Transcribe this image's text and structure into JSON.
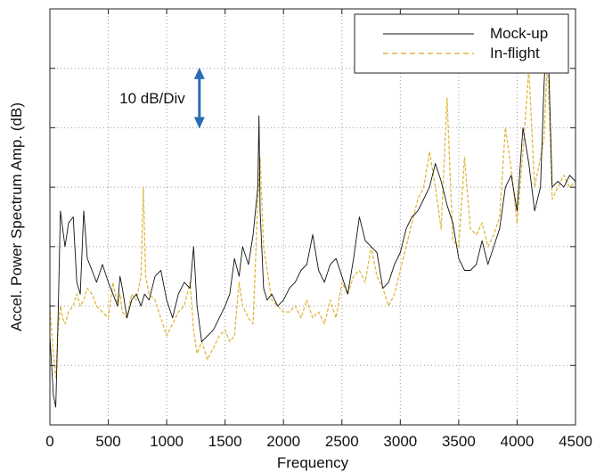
{
  "chart_data": {
    "type": "line",
    "xlabel": "Frequency",
    "ylabel": "Accel. Power Spectrum Amp. (dB)",
    "xlim": [
      0,
      4500
    ],
    "x_ticks": [
      0,
      500,
      1000,
      1500,
      2000,
      2500,
      3000,
      3500,
      4000,
      4500
    ],
    "x_tick_labels": [
      "0",
      "500",
      "1000",
      "1500",
      "2000",
      "2500",
      "3000",
      "3500",
      "4000",
      "4500"
    ],
    "ylim": [
      0,
      70
    ],
    "y_gridlines": [
      10,
      20,
      30,
      40,
      50,
      60
    ],
    "y_tick_labels_shown": false,
    "grid": true,
    "grid_style": "dotted",
    "legend_position": "top-right",
    "annotation": {
      "text": "10 dB/Div",
      "arrow": "double-headed vertical",
      "arrow_color": "#2a6db5",
      "x": 1280,
      "y_range": [
        50,
        60
      ]
    },
    "series": [
      {
        "name": "Mock-up",
        "color": "#111111",
        "style": "solid",
        "x": [
          0,
          30,
          50,
          70,
          90,
          110,
          130,
          160,
          200,
          230,
          260,
          290,
          320,
          360,
          400,
          450,
          500,
          540,
          580,
          600,
          620,
          660,
          700,
          740,
          780,
          810,
          850,
          900,
          950,
          1000,
          1050,
          1100,
          1150,
          1200,
          1230,
          1260,
          1300,
          1350,
          1400,
          1450,
          1500,
          1540,
          1580,
          1620,
          1650,
          1700,
          1740,
          1780,
          1790,
          1800,
          1830,
          1860,
          1900,
          1950,
          2000,
          2050,
          2100,
          2150,
          2200,
          2250,
          2300,
          2350,
          2400,
          2450,
          2500,
          2550,
          2600,
          2650,
          2700,
          2750,
          2800,
          2850,
          2900,
          2950,
          3000,
          3050,
          3100,
          3150,
          3200,
          3250,
          3300,
          3350,
          3400,
          3450,
          3500,
          3550,
          3600,
          3650,
          3700,
          3750,
          3800,
          3850,
          3900,
          3950,
          4000,
          4050,
          4100,
          4150,
          4200,
          4230,
          4260,
          4300,
          4350,
          4400,
          4450,
          4500
        ],
        "y": [
          15,
          5,
          3,
          18,
          36,
          33,
          30,
          34,
          35,
          24,
          22,
          36,
          28,
          26,
          24,
          27,
          24,
          22,
          20,
          25,
          23,
          18,
          21,
          22,
          20,
          22,
          21,
          25,
          26,
          21,
          18,
          22,
          24,
          23,
          30,
          20,
          14,
          15,
          16,
          18,
          20,
          22,
          28,
          25,
          30,
          27,
          32,
          40,
          52,
          36,
          23,
          21,
          22,
          20,
          21,
          23,
          24,
          26,
          27,
          32,
          26,
          24,
          27,
          28,
          25,
          22,
          28,
          35,
          31,
          30,
          29,
          23,
          24,
          27,
          29,
          33,
          35,
          36,
          38,
          40,
          44,
          41,
          37,
          34,
          28,
          26,
          26,
          27,
          31,
          27,
          30,
          33,
          40,
          42,
          36,
          50,
          44,
          36,
          40,
          57,
          68,
          40,
          41,
          40,
          42,
          41
        ]
      },
      {
        "name": "In-flight",
        "color": "#e0b840",
        "style": "dashed",
        "x": [
          0,
          30,
          50,
          70,
          90,
          110,
          130,
          160,
          200,
          230,
          260,
          290,
          320,
          360,
          400,
          450,
          500,
          540,
          580,
          600,
          620,
          660,
          700,
          740,
          780,
          800,
          820,
          850,
          900,
          950,
          1000,
          1050,
          1100,
          1150,
          1200,
          1230,
          1260,
          1300,
          1350,
          1400,
          1450,
          1500,
          1540,
          1580,
          1620,
          1650,
          1700,
          1740,
          1780,
          1800,
          1830,
          1860,
          1900,
          1950,
          2000,
          2050,
          2100,
          2150,
          2200,
          2250,
          2300,
          2350,
          2400,
          2450,
          2500,
          2550,
          2600,
          2650,
          2700,
          2750,
          2800,
          2850,
          2900,
          2950,
          3000,
          3050,
          3100,
          3150,
          3200,
          3250,
          3300,
          3350,
          3400,
          3450,
          3500,
          3550,
          3600,
          3650,
          3700,
          3750,
          3800,
          3850,
          3900,
          3950,
          4000,
          4050,
          4100,
          4150,
          4200,
          4230,
          4260,
          4300,
          4350,
          4400,
          4450,
          4500
        ],
        "y": [
          20,
          12,
          8,
          16,
          20,
          18,
          17,
          19,
          20,
          22,
          20,
          21,
          23,
          22,
          20,
          19,
          18,
          24,
          20,
          22,
          19,
          18,
          22,
          21,
          25,
          40,
          25,
          22,
          21,
          18,
          15,
          17,
          19,
          20,
          24,
          16,
          12,
          14,
          11,
          13,
          15,
          16,
          14,
          15,
          24,
          20,
          18,
          17,
          38,
          45,
          30,
          26,
          21,
          20,
          19,
          19,
          20,
          18,
          21,
          18,
          19,
          17,
          21,
          18,
          24,
          22,
          25,
          26,
          24,
          30,
          25,
          23,
          20,
          22,
          26,
          30,
          34,
          38,
          40,
          46,
          40,
          33,
          55,
          31,
          30,
          45,
          33,
          32,
          34,
          30,
          32,
          35,
          50,
          43,
          34,
          46,
          60,
          40,
          45,
          48,
          62,
          38,
          40,
          42,
          40,
          41
        ]
      }
    ]
  }
}
